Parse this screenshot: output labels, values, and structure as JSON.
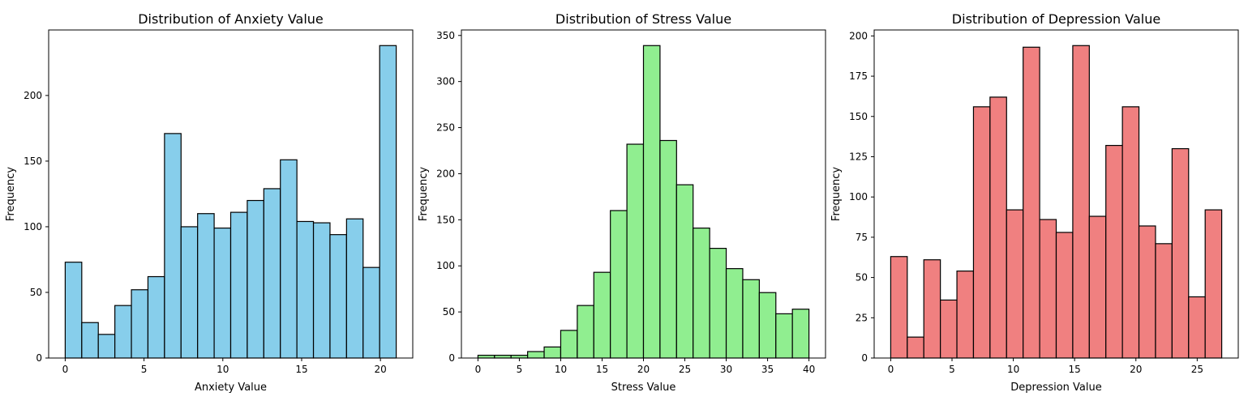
{
  "chart_data": [
    {
      "type": "bar",
      "title": "Distribution of Anxiety Value",
      "xlabel": "Anxiety Value",
      "ylabel": "Frequency",
      "color": "#87CEEB",
      "bin_start": 0,
      "bin_width": 1.05,
      "values": [
        73,
        27,
        18,
        40,
        52,
        62,
        171,
        100,
        110,
        99,
        111,
        120,
        129,
        151,
        104,
        103,
        94,
        106,
        69,
        238
      ],
      "xlim": [
        -1.05,
        22.05
      ],
      "ylim": [
        0,
        249.9
      ],
      "xticks": [
        0,
        5,
        10,
        15,
        20
      ],
      "xtick_labels": [
        "0",
        "5",
        "10",
        "15",
        "20"
      ],
      "yticks": [
        0,
        50,
        100,
        150,
        200
      ],
      "ytick_labels": [
        "0",
        "50",
        "100",
        "150",
        "200"
      ]
    },
    {
      "type": "bar",
      "title": "Distribution of Stress Value",
      "xlabel": "Stress Value",
      "ylabel": "Frequency",
      "color": "#90EE90",
      "bin_start": 0,
      "bin_width": 2,
      "values": [
        3,
        3,
        3,
        7,
        12,
        30,
        57,
        93,
        160,
        232,
        339,
        236,
        188,
        141,
        119,
        97,
        85,
        71,
        48,
        53
      ],
      "xlim": [
        -2,
        42
      ],
      "ylim": [
        0,
        355.95
      ],
      "xticks": [
        0,
        5,
        10,
        15,
        20,
        25,
        30,
        35,
        40
      ],
      "xtick_labels": [
        "0",
        "5",
        "10",
        "15",
        "20",
        "25",
        "30",
        "35",
        "40"
      ],
      "yticks": [
        0,
        50,
        100,
        150,
        200,
        250,
        300,
        350
      ],
      "ytick_labels": [
        "0",
        "50",
        "100",
        "150",
        "200",
        "250",
        "300",
        "350"
      ]
    },
    {
      "type": "bar",
      "title": "Distribution of Depression Value",
      "xlabel": "Depression Value",
      "ylabel": "Frequency",
      "color": "#F08080",
      "bin_start": 0,
      "bin_width": 1.35,
      "values": [
        63,
        13,
        61,
        36,
        54,
        156,
        162,
        92,
        193,
        86,
        78,
        194,
        88,
        132,
        156,
        82,
        71,
        130,
        38,
        92
      ],
      "xlim": [
        -1.35,
        28.35
      ],
      "ylim": [
        0,
        203.7
      ],
      "xticks": [
        0,
        5,
        10,
        15,
        20,
        25
      ],
      "xtick_labels": [
        "0",
        "5",
        "10",
        "15",
        "20",
        "25"
      ],
      "yticks": [
        0,
        25,
        50,
        75,
        100,
        125,
        150,
        175,
        200
      ],
      "ytick_labels": [
        "0",
        "25",
        "50",
        "75",
        "100",
        "125",
        "150",
        "175",
        "200"
      ]
    }
  ]
}
